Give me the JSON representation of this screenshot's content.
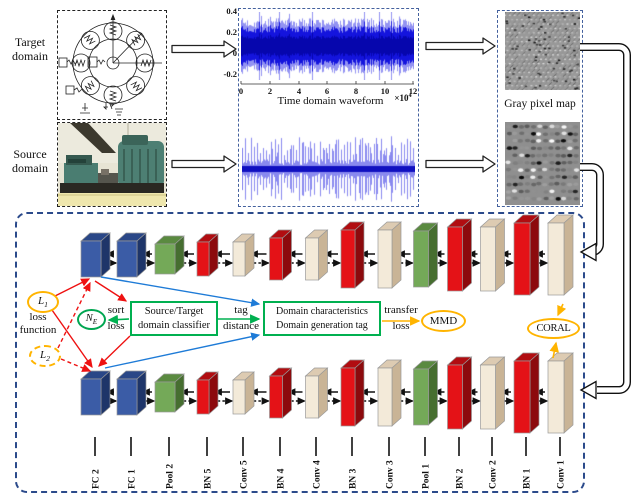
{
  "panels": {
    "target": {
      "label": "Target\ndomain"
    },
    "source": {
      "label": "Source\ndomain"
    },
    "waveform": {
      "title": "Time domain waveform",
      "y_ticks": [
        "0.4",
        "0.2",
        "0",
        "-0.2"
      ],
      "x_ticks": [
        "0",
        "2",
        "4",
        "6",
        "8",
        "10",
        "12"
      ],
      "multiplier_base": "×10",
      "multiplier_exp": "4"
    },
    "graymap": {
      "label": "Gray pixel map"
    }
  },
  "network": {
    "layers": [
      {
        "label": "FC 2",
        "color": "blue"
      },
      {
        "label": "FC 1",
        "color": "blue"
      },
      {
        "label": "Pool 2",
        "color": "green"
      },
      {
        "label": "BN 5",
        "color": "red"
      },
      {
        "label": "Conv 5",
        "color": "beige"
      },
      {
        "label": "BN 4",
        "color": "red"
      },
      {
        "label": "Conv 4",
        "color": "beige"
      },
      {
        "label": "BN 3",
        "color": "red"
      },
      {
        "label": "Conv 3",
        "color": "beige"
      },
      {
        "label": "Pool 1",
        "color": "green"
      },
      {
        "label": "BN 2",
        "color": "red"
      },
      {
        "label": "Conv 2",
        "color": "beige"
      },
      {
        "label": "BN 1",
        "color": "red"
      },
      {
        "label": "Conv 1",
        "color": "beige"
      }
    ]
  },
  "annotations": {
    "l1": {
      "base": "L",
      "sub": "1"
    },
    "l2": {
      "base": "L",
      "sub": "2"
    },
    "ne": {
      "base": "N",
      "sub": "E"
    },
    "loss_function": "loss\nfunction",
    "sort_loss": {
      "line1": "sort",
      "line2": "loss"
    },
    "classifier_box": {
      "line1": "Source/Target",
      "line2": "domain classifier"
    },
    "tag_distance": {
      "line1": "tag",
      "line2": "distance"
    },
    "domain_box": {
      "line1": "Domain characteristics",
      "line2": "Domain generation tag"
    },
    "transfer_loss": {
      "line1": "transfer",
      "line2": "loss"
    },
    "mmd": "MMD",
    "coral": "CORAL"
  },
  "colors": {
    "block_blue": "#3b5ca6",
    "block_green": "#74a958",
    "block_red": "#e41217",
    "block_beige": "#f3ead9",
    "accent_orange": "#ffb400",
    "accent_green": "#00b050",
    "arrow_red": "#ee1111",
    "arrow_blue": "#1e7bd7",
    "box_dash_blue": "#44619e",
    "net_dash_blue": "#2b4a8b",
    "waveform_blue": "#1414dd"
  },
  "chart_data": [
    {
      "type": "line",
      "title": "Time domain waveform",
      "xlabel": "",
      "ylabel": "",
      "x_ticks": [
        0,
        2,
        4,
        6,
        8,
        10,
        12
      ],
      "x_scale_note": "×10^4 (sample index 0–120000)",
      "y_ticks": [
        0.4,
        0.2,
        0,
        -0.2
      ],
      "ylim": [
        -0.35,
        0.45
      ],
      "series": [
        {
          "name": "target-domain vibration signal",
          "description": "dense broadband random noise band, roughly constant envelope, amplitude ≈ ±0.3"
        }
      ],
      "grid": false,
      "legend": false
    },
    {
      "type": "line",
      "title": "",
      "axes_visible": false,
      "series": [
        {
          "name": "source-domain vibration signal",
          "description": "quasi-periodic impulsive spikes over a dense low-amplitude core, axes cropped"
        }
      ]
    }
  ]
}
